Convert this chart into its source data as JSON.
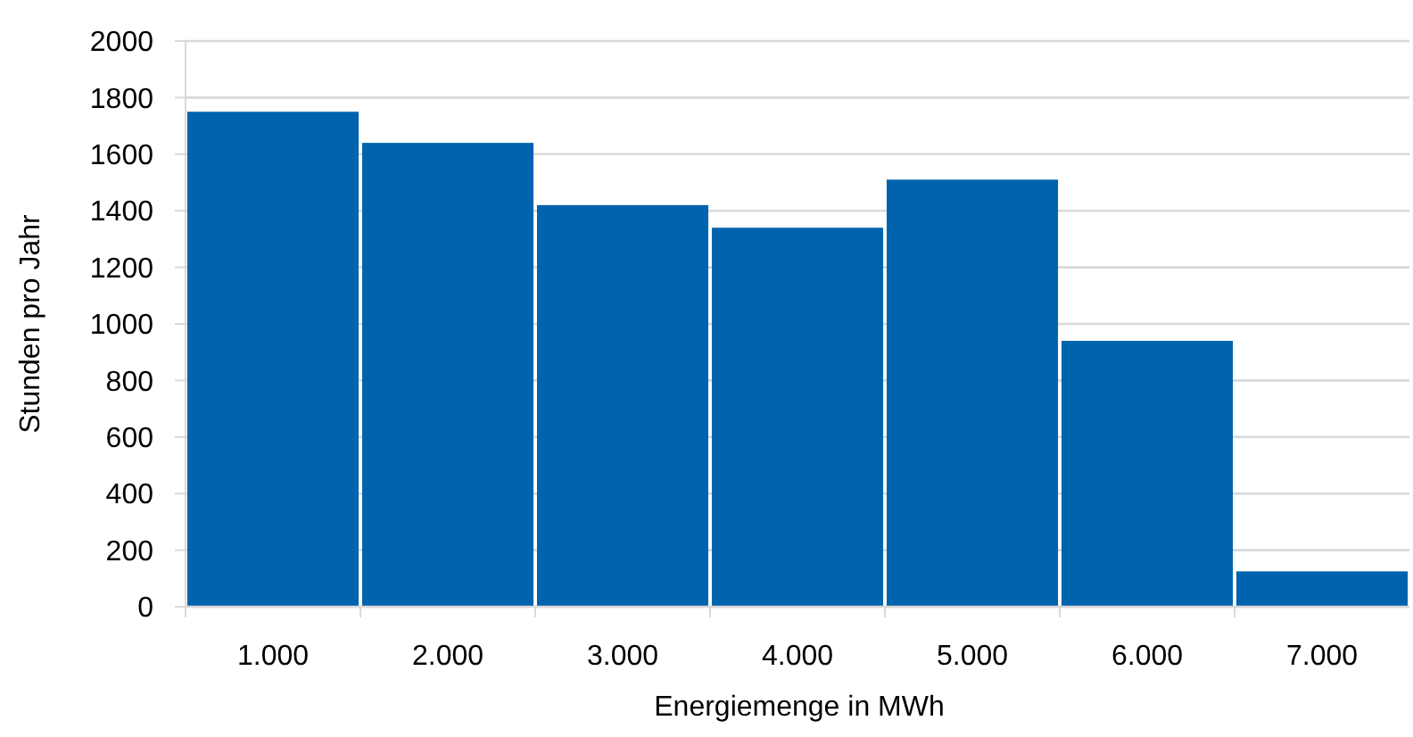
{
  "chart_data": {
    "type": "bar",
    "xlabel": "Energiemenge in MWh",
    "ylabel": "Stunden pro Jahr",
    "categories": [
      "1.000",
      "2.000",
      "3.000",
      "4.000",
      "5.000",
      "6.000",
      "7.000"
    ],
    "values": [
      1750,
      1640,
      1420,
      1340,
      1510,
      940,
      125
    ],
    "color": "#0063ad",
    "ylim": [
      0,
      2000
    ],
    "yticks": [
      0,
      200,
      400,
      600,
      800,
      1000,
      1200,
      1400,
      1600,
      1800,
      2000
    ],
    "grid": "y"
  }
}
